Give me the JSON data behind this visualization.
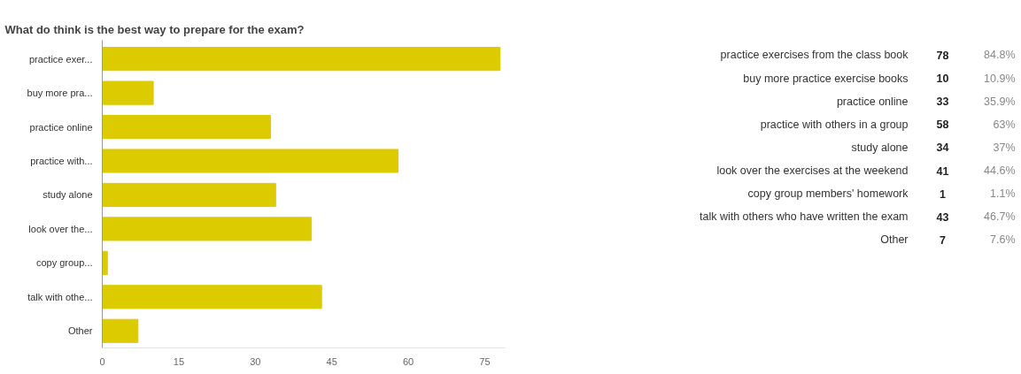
{
  "chart_data": [
    {
      "type": "bar",
      "orientation": "horizontal",
      "title": "What do think is the best way to prepare for the exam?",
      "categories": [
        "practice exer...",
        "buy more pra...",
        "practice online",
        "practice with...",
        "study alone",
        "look over the...",
        "copy group...",
        "talk with othe...",
        "Other"
      ],
      "values": [
        78,
        10,
        33,
        58,
        34,
        41,
        1,
        43,
        7
      ],
      "color": "#dccb00",
      "xlim": [
        0,
        79
      ],
      "xticks": [
        0,
        15,
        30,
        45,
        60,
        75
      ],
      "grid": false
    },
    {
      "type": "other",
      "categories": [
        "practice exercises from the class book",
        "buy more practice exercise books",
        "practice online",
        "practice with others in a group",
        "study alone",
        "look over the exercises at the weekend",
        "copy group members' homework",
        "talk with others who have written the exam",
        "Other"
      ],
      "values": [
        78,
        10,
        33,
        58,
        34,
        41,
        1,
        43,
        7
      ],
      "data_labels": true,
      "annotations": [
        "84.8%",
        "10.9%",
        "35.9%",
        "63%",
        "37%",
        "44.6%",
        "1.1%",
        "46.7%",
        "7.6%"
      ]
    }
  ]
}
